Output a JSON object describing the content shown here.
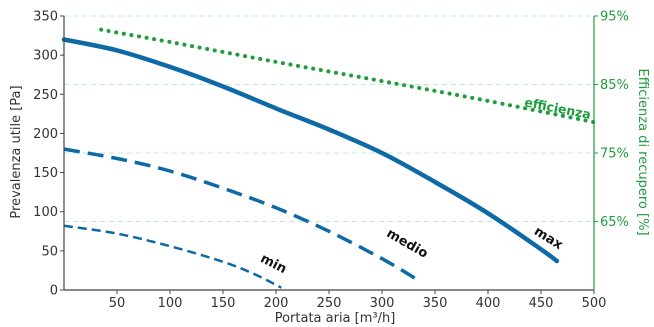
{
  "chart_data": {
    "type": "line",
    "title": "",
    "xlabel": "Portata aria [m³/h]",
    "ylabel": "Prevalenza utile [Pa]",
    "y2label": "Efficienza di recupero [%]",
    "xlim": [
      0,
      500
    ],
    "ylim": [
      0,
      350
    ],
    "y2lim": [
      55,
      95
    ],
    "x_ticks": [
      50,
      100,
      150,
      200,
      250,
      300,
      350,
      400,
      450,
      500
    ],
    "y_ticks": [
      0,
      50,
      100,
      150,
      200,
      250,
      300,
      350
    ],
    "y2_ticks": [
      65,
      75,
      85,
      95
    ],
    "y2_tick_labels": [
      "65%",
      "75%",
      "85%",
      "95%"
    ],
    "grid": "horizontal dashed at right-axis ticks",
    "colors": {
      "fan": "#0e6aa6",
      "efficiency": "#1f9d3d",
      "grid": "#bfe8d6",
      "axis": "#444444"
    },
    "series": [
      {
        "name": "max",
        "axis": "left",
        "style": "solid",
        "x": [
          0,
          50,
          100,
          150,
          200,
          250,
          300,
          350,
          400,
          450,
          465
        ],
        "y": [
          320,
          306,
          285,
          260,
          232,
          205,
          175,
          138,
          98,
          52,
          37
        ]
      },
      {
        "name": "medio",
        "axis": "left",
        "style": "dashed",
        "x": [
          0,
          50,
          100,
          150,
          200,
          250,
          300,
          335
        ],
        "y": [
          180,
          168,
          152,
          130,
          105,
          75,
          40,
          12
        ]
      },
      {
        "name": "min",
        "axis": "left",
        "style": "dashed",
        "x": [
          0,
          50,
          100,
          150,
          180,
          205
        ],
        "y": [
          82,
          72,
          56,
          36,
          20,
          3
        ]
      },
      {
        "name": "efficienza",
        "axis": "right",
        "style": "dotted",
        "x": [
          35,
          100,
          200,
          300,
          400,
          500
        ],
        "y": [
          93,
          91.2,
          88.3,
          85.5,
          82.6,
          79.5
        ]
      }
    ],
    "labels": [
      {
        "text": "max",
        "x": 455,
        "y": 62,
        "axis": "left",
        "angle": 32
      },
      {
        "text": "medio",
        "x": 322,
        "y": 55,
        "axis": "left",
        "angle": 30
      },
      {
        "text": "min",
        "x": 196,
        "y": 29,
        "axis": "left",
        "angle": 27
      },
      {
        "text": "efficienza",
        "x": 465,
        "y": 80.9,
        "axis": "right",
        "angle": 11
      }
    ]
  }
}
